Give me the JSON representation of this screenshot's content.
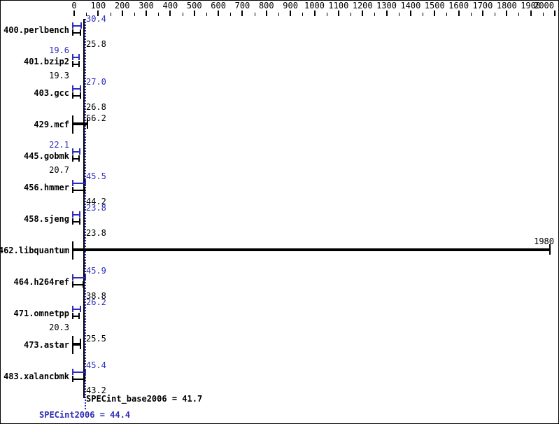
{
  "chart_data": {
    "type": "bar",
    "orientation": "horizontal",
    "description": "SPEC CPU2006 integer ratio chart; per-benchmark peak (blue) and base (black) ratio bars",
    "axis": {
      "min": 0,
      "max": 2000,
      "major_step": 100,
      "minor_step": 50,
      "tick_labels": [
        "0",
        "100",
        "200",
        "300",
        "400",
        "500",
        "600",
        "700",
        "800",
        "900",
        "1000",
        "1100",
        "1200",
        "1300",
        "1400",
        "1500",
        "1600",
        "1700",
        "1800",
        "1900",
        "2000"
      ]
    },
    "colors": {
      "peak_blue": "#2d2db8",
      "base_black": "#000000",
      "background": "#ffffff"
    },
    "benchmarks": [
      {
        "name": "400.perlbench",
        "peak": 30.4,
        "peak_text": "30.4",
        "peak_side": "right",
        "base": 25.8,
        "base_text": "25.8",
        "base_side": "right"
      },
      {
        "name": "401.bzip2",
        "peak": 19.6,
        "peak_text": "19.6",
        "peak_side": "left",
        "base": 19.3,
        "base_text": "19.3",
        "base_side": "left"
      },
      {
        "name": "403.gcc",
        "peak": 27.0,
        "peak_text": "27.0",
        "peak_side": "right",
        "base": 26.8,
        "base_text": "26.8",
        "base_side": "right"
      },
      {
        "name": "429.mcf",
        "single": true,
        "value": 56.2,
        "value_text": "56.2"
      },
      {
        "name": "445.gobmk",
        "peak": 22.1,
        "peak_text": "22.1",
        "peak_side": "left",
        "base": 20.7,
        "base_text": "20.7",
        "base_side": "left"
      },
      {
        "name": "456.hmmer",
        "peak": 45.5,
        "peak_text": "45.5",
        "peak_side": "right",
        "base": 44.2,
        "base_text": "44.2",
        "base_side": "right"
      },
      {
        "name": "458.sjeng",
        "peak": 23.8,
        "peak_text": "23.8",
        "peak_side": "right",
        "base": 23.8,
        "base_text": "23.8",
        "base_side": "right"
      },
      {
        "name": "462.libquantum",
        "single": true,
        "value": 1980,
        "value_text": "1980",
        "value_at_axis_end": true
      },
      {
        "name": "464.h264ref",
        "peak": 45.9,
        "peak_text": "45.9",
        "peak_side": "right",
        "base": 38.8,
        "base_text": "38.8",
        "base_side": "right"
      },
      {
        "name": "471.omnetpp",
        "peak": 26.2,
        "peak_text": "26.2",
        "peak_side": "right",
        "base": 20.3,
        "base_text": "20.3",
        "base_side": "left"
      },
      {
        "name": "473.astar",
        "single": true,
        "value": 25.5,
        "value_text": "25.5"
      },
      {
        "name": "483.xalancbmk",
        "peak": 45.4,
        "peak_text": "45.4",
        "peak_side": "right",
        "base": 43.2,
        "base_text": "43.2",
        "base_side": "right"
      }
    ],
    "summary": {
      "base_value": 41.7,
      "base_label": "SPECint_base2006 = 41.7",
      "peak_value": 44.4,
      "peak_label": "SPECint2006 = 44.4"
    }
  }
}
